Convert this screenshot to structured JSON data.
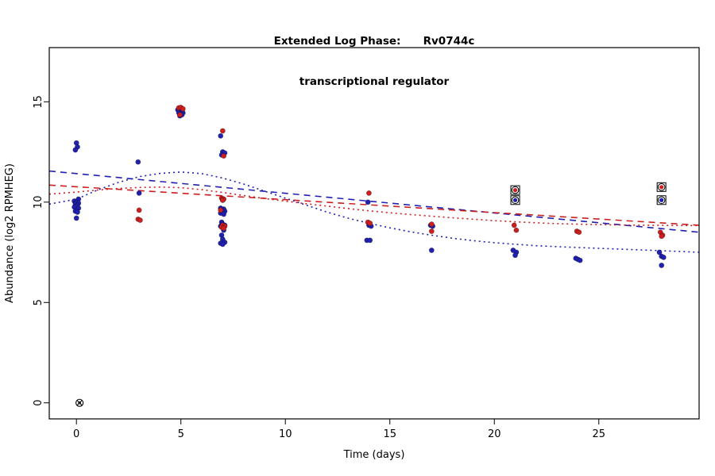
{
  "title": {
    "line1": "Extended Log Phase:      Rv0744c",
    "line2": "transcriptional regulator"
  },
  "chart_data": {
    "type": "scatter",
    "title": "Extended Log Phase: Rv0744c transcriptional regulator",
    "xlabel": "Time  (days)",
    "ylabel": "Abundance  (log2 RPMHEG)",
    "x_ticks": [
      0,
      5,
      10,
      15,
      20,
      25
    ],
    "y_ticks": [
      0,
      5,
      10,
      15
    ],
    "x_range": [
      -1.3,
      29.8
    ],
    "y_range": [
      -0.8,
      17.7
    ],
    "grid": false,
    "legend": "none",
    "colors": {
      "blue": "#2121b0",
      "red": "#cc2020",
      "black": "#000000"
    },
    "series": [
      {
        "name": "blue-points",
        "type": "points",
        "color": "blue",
        "points": [
          [
            0.0,
            12.95
          ],
          [
            0.05,
            12.75
          ],
          [
            -0.05,
            12.6
          ],
          [
            0.1,
            10.15
          ],
          [
            -0.1,
            10.05
          ],
          [
            0.0,
            10.0
          ],
          [
            0.1,
            9.95
          ],
          [
            -0.05,
            9.9
          ],
          [
            0.05,
            9.85
          ],
          [
            0.0,
            9.8
          ],
          [
            -0.1,
            9.75
          ],
          [
            0.1,
            9.7
          ],
          [
            0.0,
            9.6
          ],
          [
            -0.05,
            9.55
          ],
          [
            0.05,
            9.5
          ],
          [
            0.0,
            9.2
          ],
          [
            2.95,
            12.0
          ],
          [
            3.0,
            10.45
          ],
          [
            4.85,
            14.6
          ],
          [
            4.95,
            14.65
          ],
          [
            5.05,
            14.55
          ],
          [
            4.9,
            14.45
          ],
          [
            5.0,
            14.4
          ],
          [
            5.1,
            14.45
          ],
          [
            4.95,
            14.3
          ],
          [
            5.05,
            14.35
          ],
          [
            6.9,
            13.3
          ],
          [
            7.0,
            12.5
          ],
          [
            7.1,
            12.45
          ],
          [
            6.95,
            12.35
          ],
          [
            7.0,
            10.1
          ],
          [
            6.9,
            9.7
          ],
          [
            7.05,
            9.65
          ],
          [
            6.95,
            9.6
          ],
          [
            7.1,
            9.55
          ],
          [
            7.0,
            9.5
          ],
          [
            6.9,
            9.45
          ],
          [
            7.05,
            9.4
          ],
          [
            6.95,
            9.0
          ],
          [
            7.0,
            8.9
          ],
          [
            7.1,
            8.85
          ],
          [
            6.9,
            8.8
          ],
          [
            7.0,
            8.75
          ],
          [
            7.05,
            8.6
          ],
          [
            6.95,
            8.35
          ],
          [
            7.0,
            8.15
          ],
          [
            7.1,
            8.0
          ],
          [
            6.9,
            7.95
          ],
          [
            7.0,
            7.9
          ],
          [
            13.95,
            10.0
          ],
          [
            14.0,
            8.85
          ],
          [
            14.1,
            8.8
          ],
          [
            13.9,
            8.1
          ],
          [
            14.05,
            8.1
          ],
          [
            16.95,
            8.85
          ],
          [
            17.05,
            8.8
          ],
          [
            17.0,
            7.6
          ],
          [
            20.9,
            7.6
          ],
          [
            21.05,
            7.5
          ],
          [
            21.0,
            7.35
          ],
          [
            23.9,
            7.2
          ],
          [
            24.0,
            7.15
          ],
          [
            24.1,
            7.1
          ],
          [
            27.9,
            7.5
          ],
          [
            28.0,
            7.3
          ],
          [
            28.1,
            7.25
          ],
          [
            28.0,
            6.85
          ]
        ]
      },
      {
        "name": "red-points",
        "type": "points",
        "color": "red",
        "points": [
          [
            3.0,
            9.6
          ],
          [
            2.95,
            9.15
          ],
          [
            3.05,
            9.1
          ],
          [
            4.9,
            14.7
          ],
          [
            5.0,
            14.72
          ],
          [
            5.1,
            14.65
          ],
          [
            4.95,
            14.35
          ],
          [
            7.0,
            13.55
          ],
          [
            7.05,
            12.3
          ],
          [
            6.95,
            10.2
          ],
          [
            7.05,
            10.15
          ],
          [
            7.0,
            10.1
          ],
          [
            6.9,
            9.6
          ],
          [
            7.0,
            8.85
          ],
          [
            7.1,
            8.8
          ],
          [
            6.95,
            8.75
          ],
          [
            7.05,
            8.7
          ],
          [
            14.0,
            10.45
          ],
          [
            13.95,
            9.0
          ],
          [
            14.05,
            8.95
          ],
          [
            17.0,
            8.9
          ],
          [
            17.0,
            8.55
          ],
          [
            20.95,
            8.85
          ],
          [
            21.05,
            8.6
          ],
          [
            23.95,
            8.55
          ],
          [
            24.05,
            8.5
          ],
          [
            27.95,
            8.5
          ],
          [
            28.05,
            8.35
          ],
          [
            28.0,
            8.3
          ]
        ]
      }
    ],
    "special_points": [
      {
        "x": 0.15,
        "y": 0.0,
        "color": "black",
        "style": "circle-x"
      },
      {
        "x": 21.0,
        "y": 10.6,
        "color": "red",
        "style": "boxed"
      },
      {
        "x": 21.0,
        "y": 10.1,
        "color": "blue",
        "style": "boxed"
      },
      {
        "x": 28.0,
        "y": 10.75,
        "color": "red",
        "style": "boxed"
      },
      {
        "x": 28.0,
        "y": 10.1,
        "color": "blue",
        "style": "boxed"
      }
    ],
    "lines": [
      {
        "name": "blue-dashed",
        "color": "blue",
        "dash": "8,6",
        "points": [
          [
            -1.3,
            11.55
          ],
          [
            29.8,
            8.5
          ]
        ]
      },
      {
        "name": "red-dashed",
        "color": "red",
        "dash": "8,6",
        "points": [
          [
            -1.3,
            10.85
          ],
          [
            29.8,
            8.85
          ]
        ]
      },
      {
        "name": "blue-dotted",
        "color": "blue",
        "dash": "2,4",
        "points": [
          [
            -1.3,
            9.9
          ],
          [
            0,
            10.15
          ],
          [
            1,
            10.6
          ],
          [
            2,
            10.98
          ],
          [
            3,
            11.27
          ],
          [
            4,
            11.43
          ],
          [
            5,
            11.5
          ],
          [
            6,
            11.42
          ],
          [
            7,
            11.2
          ],
          [
            8,
            10.9
          ],
          [
            9,
            10.55
          ],
          [
            10,
            10.2
          ],
          [
            11,
            9.85
          ],
          [
            12,
            9.5
          ],
          [
            13,
            9.2
          ],
          [
            14,
            8.95
          ],
          [
            15,
            8.72
          ],
          [
            16,
            8.52
          ],
          [
            17,
            8.35
          ],
          [
            18,
            8.2
          ],
          [
            19,
            8.08
          ],
          [
            20,
            7.98
          ],
          [
            21,
            7.9
          ],
          [
            22,
            7.83
          ],
          [
            23,
            7.78
          ],
          [
            24,
            7.74
          ],
          [
            25,
            7.7
          ],
          [
            26,
            7.66
          ],
          [
            27,
            7.62
          ],
          [
            28,
            7.58
          ],
          [
            29.8,
            7.5
          ]
        ]
      },
      {
        "name": "red-dotted",
        "color": "red",
        "dash": "2,4",
        "points": [
          [
            -1.3,
            10.4
          ],
          [
            0,
            10.5
          ],
          [
            1,
            10.6
          ],
          [
            2,
            10.68
          ],
          [
            3,
            10.73
          ],
          [
            4,
            10.75
          ],
          [
            5,
            10.72
          ],
          [
            6,
            10.62
          ],
          [
            7,
            10.48
          ],
          [
            8,
            10.33
          ],
          [
            9,
            10.18
          ],
          [
            10,
            10.05
          ],
          [
            11,
            9.92
          ],
          [
            12,
            9.8
          ],
          [
            13,
            9.68
          ],
          [
            14,
            9.57
          ],
          [
            15,
            9.47
          ],
          [
            16,
            9.38
          ],
          [
            17,
            9.3
          ],
          [
            18,
            9.22
          ],
          [
            19,
            9.15
          ],
          [
            20,
            9.08
          ],
          [
            21,
            9.02
          ],
          [
            22,
            8.97
          ],
          [
            23,
            8.93
          ],
          [
            24,
            8.9
          ],
          [
            25,
            8.88
          ],
          [
            26,
            8.86
          ],
          [
            27,
            8.85
          ],
          [
            28,
            8.84
          ],
          [
            29.8,
            8.83
          ]
        ]
      }
    ]
  }
}
